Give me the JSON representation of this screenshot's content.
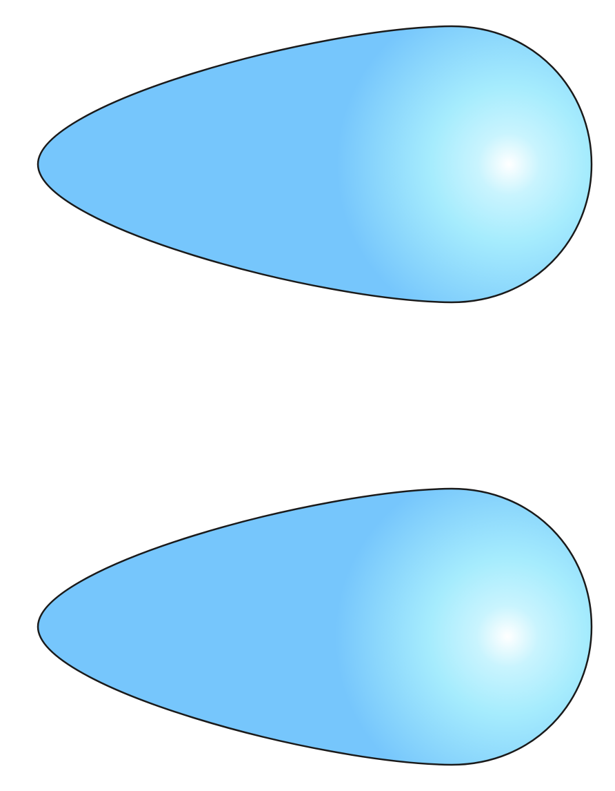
{
  "background_color": "#ffffff",
  "shapes": [
    {
      "kind": "teardrop",
      "orientation": "pointing-left",
      "fill_base": "#76c6fc",
      "highlight_mid": "#a6ecfd",
      "highlight_center": "#ffffff",
      "outline": "#1a1a1a"
    },
    {
      "kind": "teardrop",
      "orientation": "pointing-left",
      "fill_base": "#76c6fc",
      "highlight_mid": "#a6ecfd",
      "highlight_center": "#ffffff",
      "outline": "#1a1a1a"
    }
  ]
}
